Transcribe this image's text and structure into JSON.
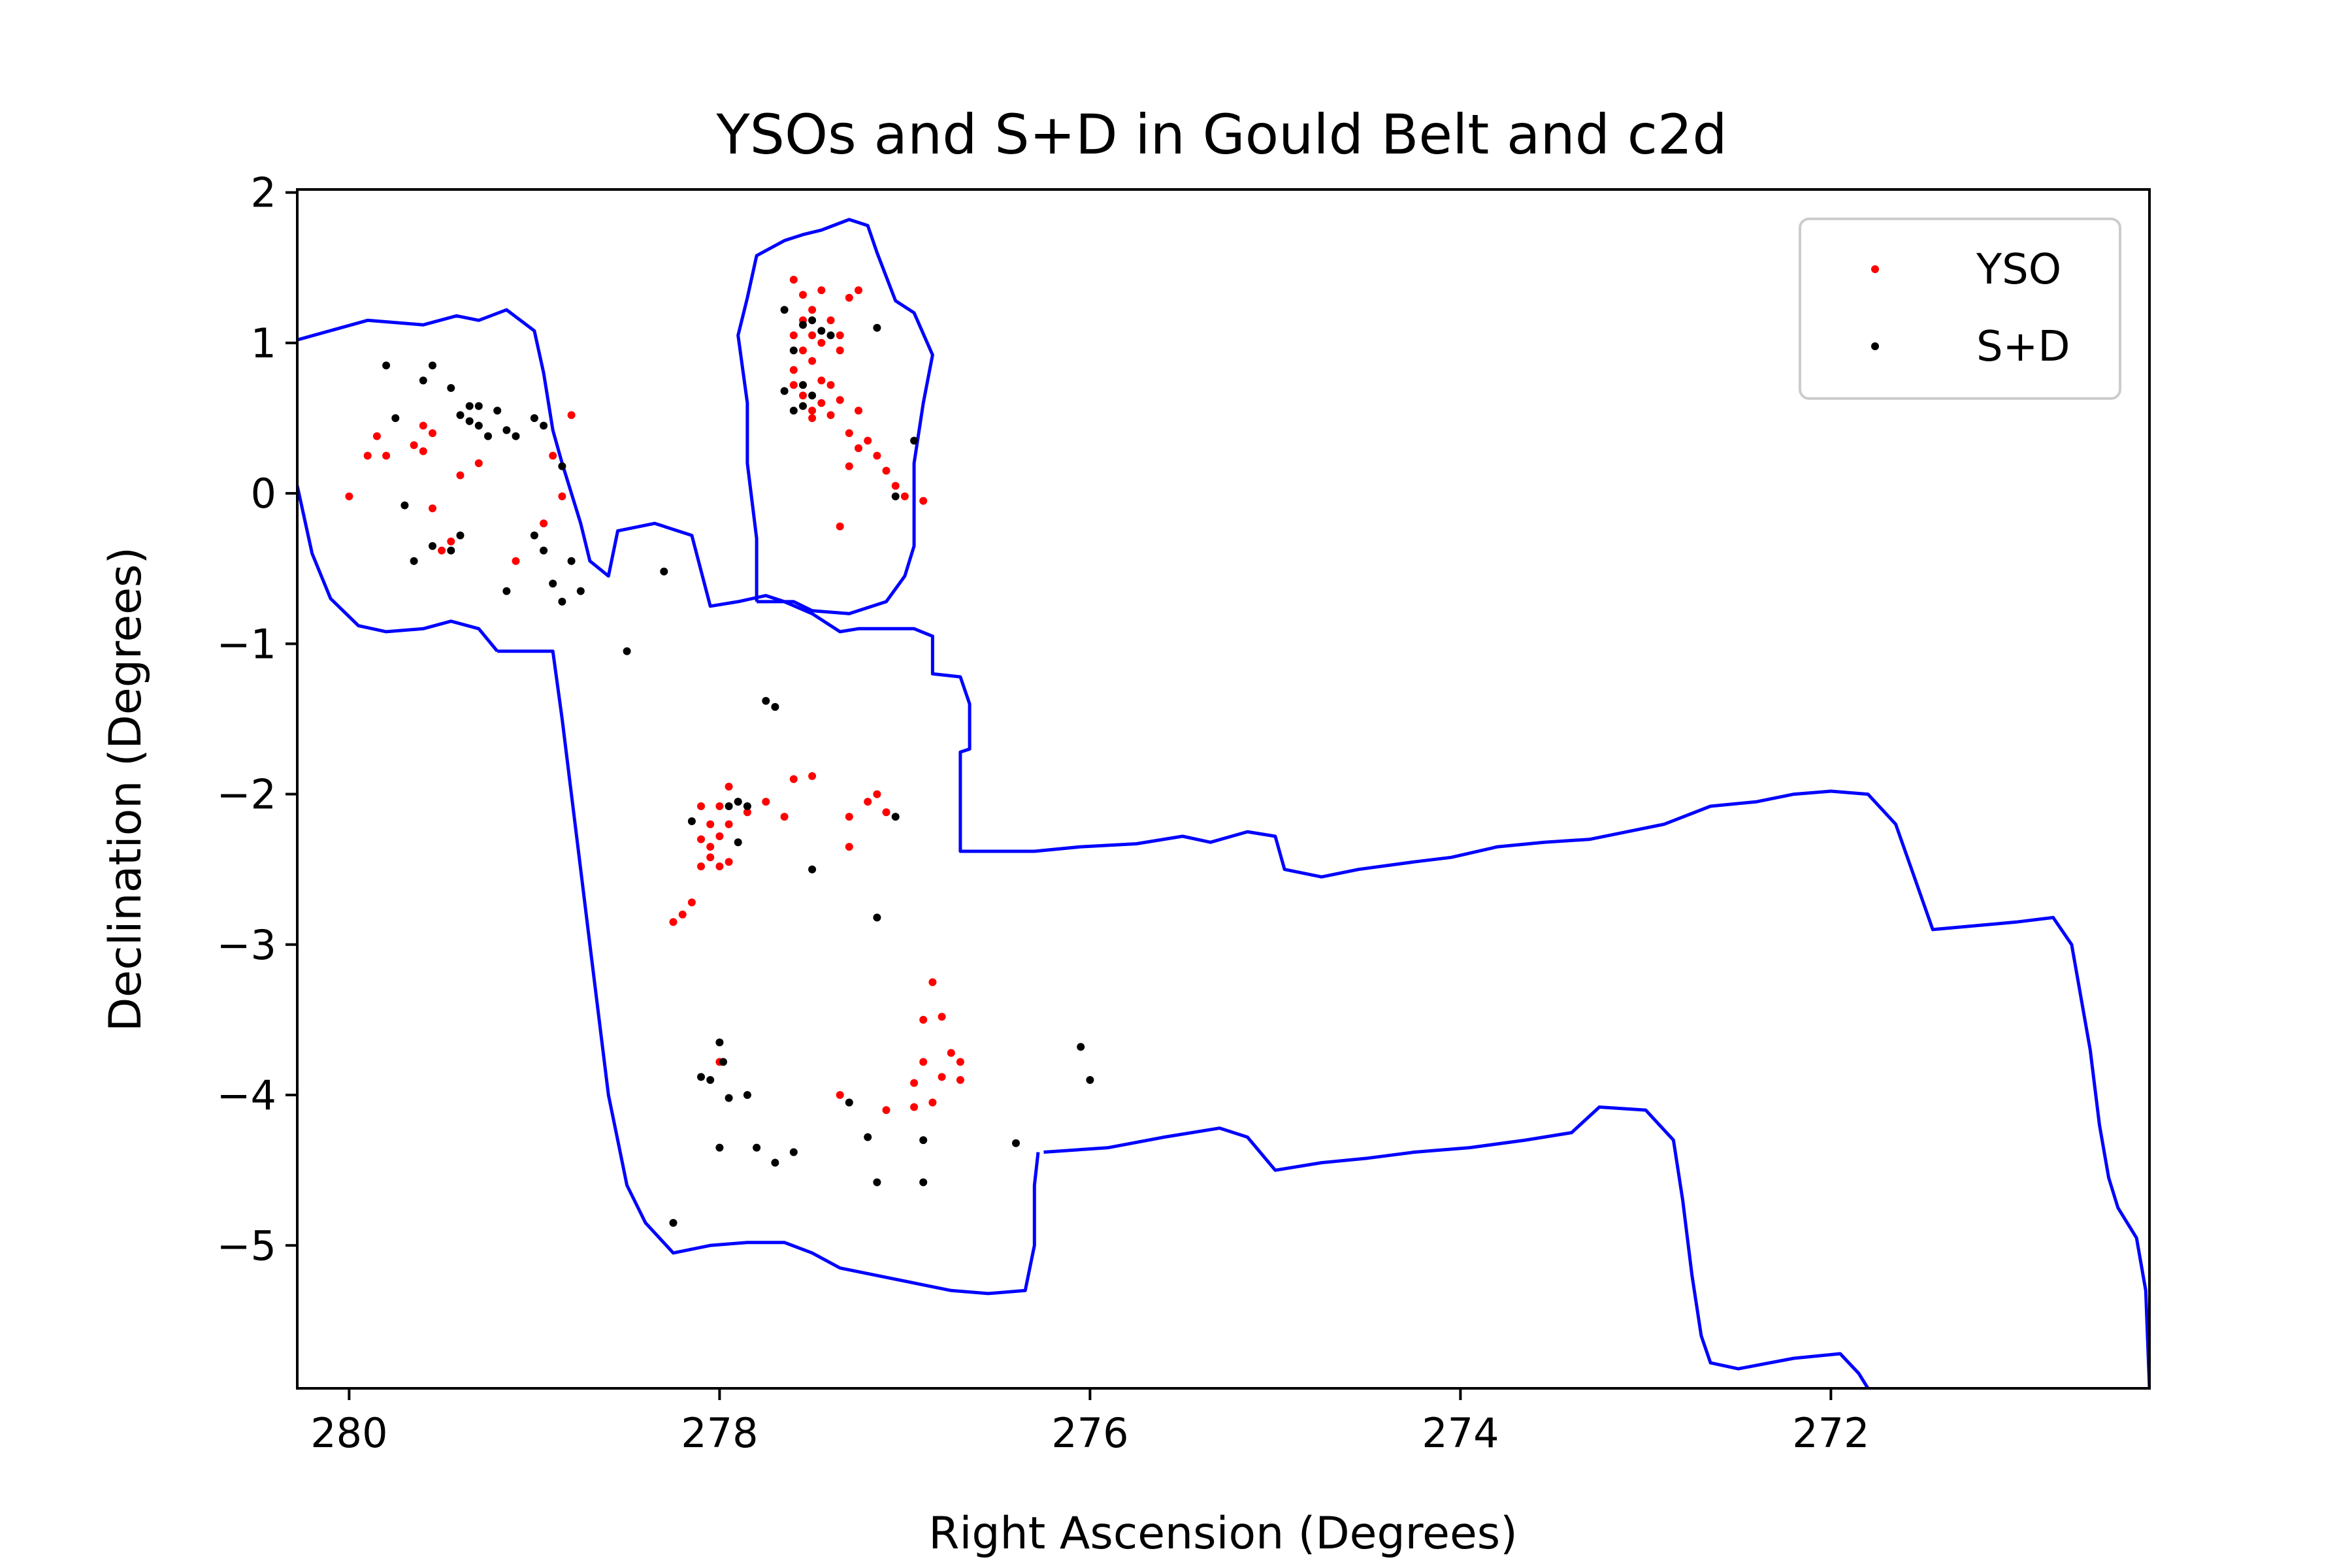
{
  "chart_data": {
    "type": "scatter",
    "title": "YSOs and S+D in Gould Belt and c2d",
    "xlabel": "Right Ascension (Degrees)",
    "ylabel": "Declination (Degrees)",
    "xlim": [
      280.28,
      270.28
    ],
    "ylim": [
      -5.95,
      2.02
    ],
    "x_inverted": true,
    "grid": false,
    "legend_position": "top-right",
    "xticks": [
      280,
      278,
      276,
      274,
      272
    ],
    "xtick_labels": [
      "280",
      "278",
      "276",
      "274",
      "272"
    ],
    "yticks": [
      2,
      1,
      0,
      -1,
      -2,
      -3,
      -4,
      -5
    ],
    "ytick_labels": [
      "2",
      "1",
      "0",
      "−1",
      "−2",
      "−3",
      "−4",
      "−5"
    ],
    "series": [
      {
        "name": "YSO",
        "color": "#ff0000",
        "points": [
          [
            280.0,
            -0.02
          ],
          [
            279.9,
            0.25
          ],
          [
            279.85,
            0.38
          ],
          [
            279.8,
            0.25
          ],
          [
            279.65,
            0.32
          ],
          [
            279.6,
            0.45
          ],
          [
            279.55,
            -0.1
          ],
          [
            279.5,
            -0.38
          ],
          [
            279.45,
            -0.32
          ],
          [
            279.4,
            0.12
          ],
          [
            279.3,
            0.2
          ],
          [
            279.1,
            -0.45
          ],
          [
            278.95,
            -0.2
          ],
          [
            278.9,
            0.25
          ],
          [
            278.85,
            -0.02
          ],
          [
            278.8,
            0.52
          ],
          [
            279.6,
            0.28
          ],
          [
            279.55,
            0.4
          ],
          [
            277.6,
            1.42
          ],
          [
            277.55,
            1.32
          ],
          [
            277.5,
            1.22
          ],
          [
            277.45,
            1.35
          ],
          [
            277.4,
            1.15
          ],
          [
            277.35,
            1.05
          ],
          [
            277.6,
            1.05
          ],
          [
            277.55,
            0.95
          ],
          [
            277.5,
            0.88
          ],
          [
            277.45,
            0.75
          ],
          [
            277.4,
            0.72
          ],
          [
            277.35,
            0.62
          ],
          [
            277.5,
            0.55
          ],
          [
            277.45,
            1.0
          ],
          [
            277.6,
            0.82
          ],
          [
            277.55,
            0.65
          ],
          [
            277.3,
            1.3
          ],
          [
            277.25,
            1.35
          ],
          [
            277.35,
            0.95
          ],
          [
            277.4,
            0.52
          ],
          [
            277.3,
            0.4
          ],
          [
            277.25,
            0.3
          ],
          [
            277.2,
            0.35
          ],
          [
            277.15,
            0.25
          ],
          [
            277.1,
            0.15
          ],
          [
            277.05,
            0.05
          ],
          [
            277.0,
            -0.02
          ],
          [
            276.9,
            -0.05
          ],
          [
            277.35,
            -0.22
          ],
          [
            277.5,
            0.5
          ],
          [
            277.45,
            0.6
          ],
          [
            277.55,
            1.15
          ],
          [
            277.5,
            1.05
          ],
          [
            277.6,
            0.72
          ],
          [
            277.25,
            0.55
          ],
          [
            277.3,
            0.18
          ],
          [
            278.1,
            -2.08
          ],
          [
            278.05,
            -2.2
          ],
          [
            278.0,
            -2.08
          ],
          [
            277.95,
            -2.2
          ],
          [
            277.9,
            -2.05
          ],
          [
            277.85,
            -2.12
          ],
          [
            277.75,
            -2.05
          ],
          [
            277.65,
            -2.15
          ],
          [
            277.6,
            -1.9
          ],
          [
            277.5,
            -1.88
          ],
          [
            277.3,
            -2.15
          ],
          [
            277.2,
            -2.05
          ],
          [
            277.15,
            -2.0
          ],
          [
            277.1,
            -2.12
          ],
          [
            277.3,
            -2.35
          ],
          [
            278.1,
            -2.3
          ],
          [
            278.05,
            -2.42
          ],
          [
            278.0,
            -2.48
          ],
          [
            278.1,
            -2.48
          ],
          [
            277.95,
            -2.45
          ],
          [
            278.0,
            -2.28
          ],
          [
            278.15,
            -2.72
          ],
          [
            278.2,
            -2.8
          ],
          [
            278.25,
            -2.85
          ],
          [
            277.95,
            -1.95
          ],
          [
            278.05,
            -2.35
          ],
          [
            276.85,
            -3.25
          ],
          [
            276.9,
            -3.5
          ],
          [
            276.8,
            -3.48
          ],
          [
            276.75,
            -3.72
          ],
          [
            276.8,
            -3.88
          ],
          [
            276.95,
            -3.92
          ],
          [
            276.9,
            -3.78
          ],
          [
            276.85,
            -4.05
          ],
          [
            276.7,
            -3.78
          ],
          [
            276.7,
            -3.9
          ],
          [
            276.95,
            -4.08
          ],
          [
            277.1,
            -4.1
          ],
          [
            277.35,
            -4.0
          ],
          [
            278.0,
            -3.78
          ]
        ]
      },
      {
        "name": "S+D",
        "color": "#000000",
        "points": [
          [
            279.8,
            0.85
          ],
          [
            279.75,
            0.5
          ],
          [
            279.6,
            0.75
          ],
          [
            279.55,
            0.85
          ],
          [
            279.45,
            0.7
          ],
          [
            279.4,
            0.52
          ],
          [
            279.35,
            0.58
          ],
          [
            279.3,
            0.45
          ],
          [
            279.25,
            0.38
          ],
          [
            279.2,
            0.55
          ],
          [
            279.15,
            0.42
          ],
          [
            279.1,
            0.38
          ],
          [
            279.0,
            0.5
          ],
          [
            278.95,
            0.45
          ],
          [
            278.85,
            0.18
          ],
          [
            279.35,
            0.48
          ],
          [
            279.3,
            0.58
          ],
          [
            279.7,
            -0.08
          ],
          [
            279.65,
            -0.45
          ],
          [
            279.55,
            -0.35
          ],
          [
            279.45,
            -0.38
          ],
          [
            279.4,
            -0.28
          ],
          [
            279.15,
            -0.65
          ],
          [
            279.0,
            -0.28
          ],
          [
            278.95,
            -0.38
          ],
          [
            278.9,
            -0.6
          ],
          [
            278.85,
            -0.72
          ],
          [
            278.8,
            -0.45
          ],
          [
            278.75,
            -0.65
          ],
          [
            278.5,
            -1.05
          ],
          [
            278.3,
            -0.52
          ],
          [
            277.65,
            1.22
          ],
          [
            277.55,
            1.12
          ],
          [
            277.5,
            1.15
          ],
          [
            277.45,
            1.08
          ],
          [
            277.4,
            1.05
          ],
          [
            277.6,
            0.95
          ],
          [
            277.55,
            0.72
          ],
          [
            277.5,
            0.65
          ],
          [
            277.65,
            0.68
          ],
          [
            277.6,
            0.55
          ],
          [
            277.55,
            0.58
          ],
          [
            277.15,
            1.1
          ],
          [
            277.05,
            -0.02
          ],
          [
            276.95,
            0.35
          ],
          [
            277.75,
            -1.38
          ],
          [
            277.7,
            -1.42
          ],
          [
            278.15,
            -2.18
          ],
          [
            277.95,
            -2.08
          ],
          [
            277.9,
            -2.05
          ],
          [
            277.85,
            -2.08
          ],
          [
            277.9,
            -2.32
          ],
          [
            277.5,
            -2.5
          ],
          [
            277.05,
            -2.15
          ],
          [
            277.15,
            -2.82
          ],
          [
            278.0,
            -3.65
          ],
          [
            277.98,
            -3.78
          ],
          [
            278.1,
            -3.88
          ],
          [
            278.05,
            -3.9
          ],
          [
            277.95,
            -4.02
          ],
          [
            277.85,
            -4.0
          ],
          [
            278.0,
            -4.35
          ],
          [
            277.8,
            -4.35
          ],
          [
            277.7,
            -4.45
          ],
          [
            277.6,
            -4.38
          ],
          [
            277.3,
            -4.05
          ],
          [
            277.2,
            -4.28
          ],
          [
            277.15,
            -4.58
          ],
          [
            276.9,
            -4.3
          ],
          [
            276.9,
            -4.58
          ],
          [
            276.4,
            -4.32
          ],
          [
            276.05,
            -3.68
          ],
          [
            276.0,
            -3.9
          ],
          [
            278.25,
            -4.85
          ]
        ]
      }
    ],
    "boundary": {
      "name": "coverage boundary",
      "color": "#0000ff",
      "outline": [
        [
          280.28,
          1.02
        ],
        [
          279.9,
          1.15
        ],
        [
          279.6,
          1.12
        ],
        [
          279.42,
          1.18
        ],
        [
          279.3,
          1.15
        ],
        [
          279.15,
          1.22
        ],
        [
          279.0,
          1.08
        ],
        [
          278.95,
          0.8
        ],
        [
          278.9,
          0.42
        ],
        [
          278.85,
          0.2
        ],
        [
          278.75,
          -0.2
        ],
        [
          278.7,
          -0.45
        ],
        [
          278.6,
          -0.55
        ],
        [
          278.55,
          -0.25
        ],
        [
          278.35,
          -0.2
        ],
        [
          278.15,
          -0.28
        ],
        [
          278.05,
          -0.75
        ],
        [
          277.9,
          -0.72
        ],
        [
          277.75,
          -0.68
        ],
        [
          277.65,
          -0.72
        ],
        [
          277.5,
          -0.8
        ],
        [
          277.35,
          -0.92
        ],
        [
          277.25,
          -0.9
        ],
        [
          277.1,
          -0.9
        ],
        [
          276.95,
          -0.9
        ],
        [
          276.85,
          -0.95
        ],
        [
          276.85,
          -1.2
        ],
        [
          276.7,
          -1.22
        ],
        [
          276.65,
          -1.4
        ],
        [
          276.65,
          -1.7
        ],
        [
          276.7,
          -1.72
        ],
        [
          276.7,
          -2.38
        ],
        [
          276.3,
          -2.38
        ],
        [
          276.05,
          -2.35
        ],
        [
          275.75,
          -2.33
        ],
        [
          275.5,
          -2.28
        ],
        [
          275.35,
          -2.32
        ],
        [
          275.15,
          -2.25
        ],
        [
          275.0,
          -2.28
        ],
        [
          274.95,
          -2.5
        ],
        [
          274.75,
          -2.55
        ],
        [
          274.55,
          -2.5
        ],
        [
          274.25,
          -2.45
        ],
        [
          274.05,
          -2.42
        ],
        [
          273.8,
          -2.35
        ],
        [
          273.55,
          -2.32
        ],
        [
          273.3,
          -2.3
        ],
        [
          273.1,
          -2.25
        ],
        [
          272.9,
          -2.2
        ],
        [
          272.65,
          -2.08
        ],
        [
          272.4,
          -2.05
        ],
        [
          272.2,
          -2.0
        ],
        [
          272.0,
          -1.98
        ],
        [
          271.8,
          -2.0
        ],
        [
          271.65,
          -2.2
        ],
        [
          271.55,
          -2.55
        ],
        [
          271.45,
          -2.9
        ],
        [
          271.0,
          -2.85
        ],
        [
          270.8,
          -2.82
        ],
        [
          270.7,
          -3.0
        ],
        [
          270.65,
          -3.35
        ],
        [
          270.6,
          -3.7
        ],
        [
          270.55,
          -4.2
        ],
        [
          270.5,
          -4.55
        ],
        [
          270.45,
          -4.75
        ],
        [
          270.35,
          -4.95
        ],
        [
          270.3,
          -5.3
        ],
        [
          270.28,
          -5.95
        ]
      ],
      "outline_bottom": [
        [
          276.25,
          -4.38
        ],
        [
          275.9,
          -4.35
        ],
        [
          275.6,
          -4.28
        ],
        [
          275.3,
          -4.22
        ],
        [
          275.15,
          -4.28
        ],
        [
          275.0,
          -4.5
        ],
        [
          274.75,
          -4.45
        ],
        [
          274.5,
          -4.42
        ],
        [
          274.25,
          -4.38
        ],
        [
          273.95,
          -4.35
        ],
        [
          273.65,
          -4.3
        ],
        [
          273.4,
          -4.25
        ],
        [
          273.25,
          -4.08
        ],
        [
          273.0,
          -4.1
        ],
        [
          272.85,
          -4.3
        ],
        [
          272.8,
          -4.7
        ],
        [
          272.75,
          -5.2
        ],
        [
          272.7,
          -5.6
        ],
        [
          272.65,
          -5.78
        ],
        [
          272.5,
          -5.82
        ],
        [
          272.2,
          -5.75
        ],
        [
          271.95,
          -5.72
        ],
        [
          271.85,
          -5.85
        ],
        [
          271.8,
          -5.95
        ]
      ],
      "outline_south": [
        [
          279.2,
          -1.05
        ],
        [
          279.05,
          -1.05
        ],
        [
          278.9,
          -1.05
        ],
        [
          278.85,
          -1.5
        ],
        [
          278.8,
          -2.0
        ],
        [
          278.75,
          -2.5
        ],
        [
          278.7,
          -3.0
        ],
        [
          278.65,
          -3.5
        ],
        [
          278.6,
          -4.0
        ],
        [
          278.55,
          -4.3
        ],
        [
          278.5,
          -4.6
        ],
        [
          278.4,
          -4.85
        ],
        [
          278.25,
          -5.05
        ],
        [
          278.05,
          -5.0
        ],
        [
          277.85,
          -4.98
        ],
        [
          277.65,
          -4.98
        ],
        [
          277.5,
          -5.05
        ],
        [
          277.35,
          -5.15
        ],
        [
          277.15,
          -5.2
        ],
        [
          276.95,
          -5.25
        ],
        [
          276.75,
          -5.3
        ],
        [
          276.55,
          -5.32
        ],
        [
          276.35,
          -5.3
        ],
        [
          276.3,
          -5.0
        ],
        [
          276.3,
          -4.6
        ],
        [
          276.28,
          -4.38
        ]
      ],
      "outline_nw": [
        [
          280.28,
          0.05
        ],
        [
          280.2,
          -0.4
        ],
        [
          280.1,
          -0.7
        ],
        [
          279.95,
          -0.88
        ],
        [
          279.8,
          -0.92
        ],
        [
          279.6,
          -0.9
        ],
        [
          279.45,
          -0.85
        ],
        [
          279.3,
          -0.9
        ],
        [
          279.2,
          -1.05
        ]
      ],
      "outline_north": [
        [
          277.8,
          -0.72
        ],
        [
          277.8,
          -0.3
        ],
        [
          277.85,
          0.2
        ],
        [
          277.85,
          0.6
        ],
        [
          277.9,
          1.05
        ],
        [
          277.85,
          1.3
        ],
        [
          277.8,
          1.58
        ],
        [
          277.65,
          1.68
        ],
        [
          277.55,
          1.72
        ],
        [
          277.45,
          1.75
        ],
        [
          277.3,
          1.82
        ],
        [
          277.2,
          1.78
        ],
        [
          277.15,
          1.6
        ],
        [
          277.05,
          1.28
        ],
        [
          276.95,
          1.2
        ],
        [
          276.85,
          0.92
        ],
        [
          276.9,
          0.6
        ],
        [
          276.95,
          0.2
        ],
        [
          276.95,
          -0.35
        ],
        [
          277.0,
          -0.55
        ],
        [
          277.1,
          -0.72
        ],
        [
          277.3,
          -0.8
        ],
        [
          277.5,
          -0.78
        ],
        [
          277.6,
          -0.72
        ],
        [
          277.8,
          -0.72
        ]
      ]
    }
  }
}
